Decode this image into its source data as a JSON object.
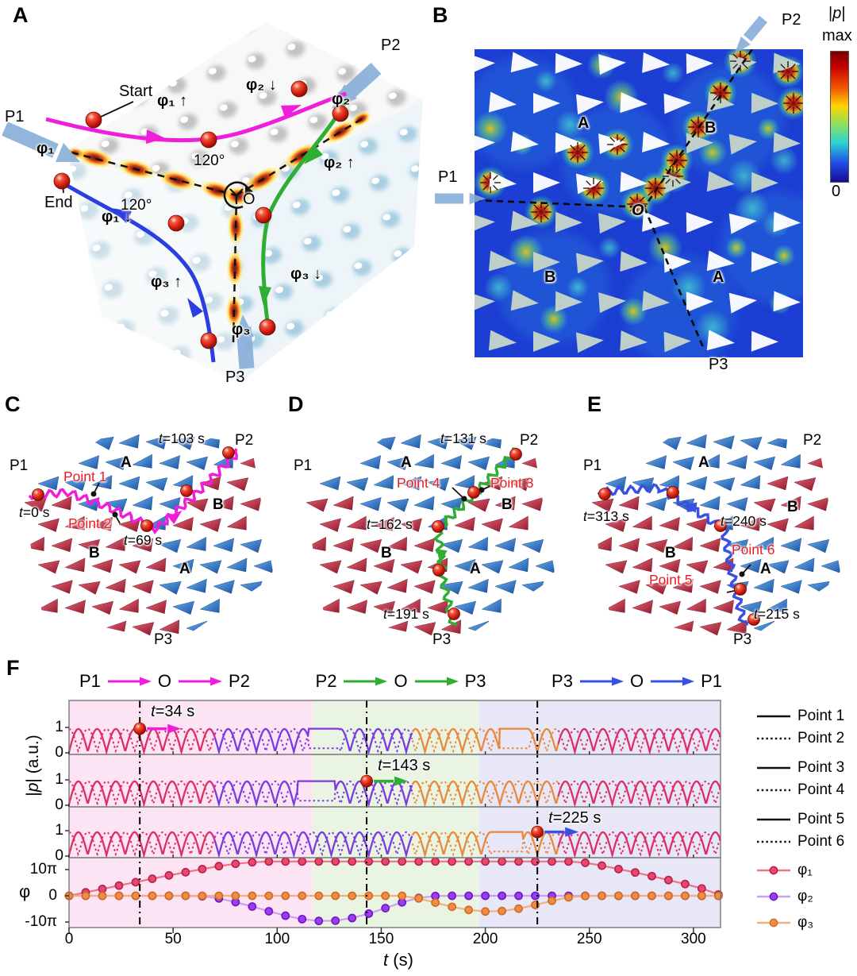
{
  "colors": {
    "magenta": "#f01ddb",
    "green": "#2fae33",
    "blue": "#3a50e0",
    "crimson": "#de2e66",
    "purple": "#7c3be0",
    "orange": "#e8893c",
    "band_pink": "#fce4f4",
    "band_green": "#eaf4e3",
    "band_blue": "#e7e7f8",
    "beam_blue": "#86add8",
    "field_blue": "#1c3ed2",
    "triangle_white": "#ffffff",
    "triangle_gray": "#c5d4c9",
    "domainA_blue": "#2d7fd3",
    "domainB_red": "#c94055",
    "sphere_red": "#d21f10"
  },
  "panelA": {
    "letter": "A",
    "p1": "P1",
    "p2": "P2",
    "p3": "P3",
    "start": "Start",
    "end": "End",
    "origin": "O",
    "angle_top": "120°",
    "angle_left": "120°",
    "phi1_up": "φ₁ ↑",
    "phi2_down": "φ₂ ↓",
    "phi2_beam": "φ₂",
    "phi1_beam": "φ₁",
    "phi2_up": "φ₂ ↑",
    "phi1_down": "φ₁ ↓",
    "phi3_up": "φ₃ ↑",
    "phi3_down": "φ₃ ↓",
    "phi3_beam": "φ₃"
  },
  "panelB": {
    "letter": "B",
    "p1": "P1",
    "p2": "P2",
    "p3": "P3",
    "origin": "O",
    "region_top_a": "A",
    "region_top_b": "B",
    "region_bottom_b": "B",
    "region_bottom_a": "A",
    "colorbar": {
      "bar1": "|",
      "p": "p",
      "bar2": "|",
      "max": "max",
      "min": "0"
    }
  },
  "panelC": {
    "letter": "C",
    "p1": "P1",
    "p2": "P2",
    "p3": "P3",
    "t_start": "t=0 s",
    "t_mid": "t=69 s",
    "t_end": "t=103 s",
    "point_a": "Point 1",
    "point_b": "Point 2",
    "region_top": "A",
    "region_right": "B",
    "region_bottom_left": "B",
    "region_bottom_right": "A"
  },
  "panelD": {
    "letter": "D",
    "p1": "P1",
    "p2": "P2",
    "p3": "P3",
    "t_start": "t=131 s",
    "t_mid": "t=162 s",
    "t_end": "t=191 s",
    "point_a": "Point 4",
    "point_b": "Point 3",
    "region_top": "A",
    "region_right": "B",
    "region_bottom_left": "B",
    "region_bottom_right": "A"
  },
  "panelE": {
    "letter": "E",
    "p1": "P1",
    "p2": "P2",
    "p3": "P3",
    "t_start": "t=313 s",
    "t_mid": "t=240 s",
    "t_end": "t=215 s",
    "point_a": "Point 6",
    "point_b": "Point 5",
    "region_top": "A",
    "region_right": "B",
    "region_bottom_left": "B",
    "region_bottom_right": "A"
  },
  "panelF": {
    "letter": "F",
    "journeys": [
      {
        "from": "P1",
        "via": "O",
        "to": "P2",
        "color": "#f01ddb"
      },
      {
        "from": "P2",
        "via": "O",
        "to": "P3",
        "color": "#2fae33"
      },
      {
        "from": "P3",
        "via": "O",
        "to": "P1",
        "color": "#3a50e0"
      }
    ],
    "ylabel_p_parts": {
      "bar1": "|",
      "p": "p",
      "rest": "| (a.u.)"
    },
    "ylabel_phi": "φ",
    "xlabel": "t (s)",
    "legend": [
      {
        "label": "Point 1",
        "line": "solid"
      },
      {
        "label": "Point 2",
        "line": "dotted"
      },
      {
        "label": "Point 3",
        "line": "solid"
      },
      {
        "label": "Point 4",
        "line": "dotted"
      },
      {
        "label": "Point 5",
        "line": "solid"
      },
      {
        "label": "Point 6",
        "line": "dotted"
      },
      {
        "label": "φ₁",
        "line": "phi",
        "marker": "#e8486c",
        "stroke": "#ef7287",
        "edge": "#b81e48"
      },
      {
        "label": "φ₂",
        "line": "phi",
        "marker": "#9a3cf0",
        "stroke": "#cf9ef2",
        "edge": "#6e18c0"
      },
      {
        "label": "φ₃",
        "line": "phi",
        "marker": "#f08c4a",
        "stroke": "#f4b07c",
        "edge": "#d06a20"
      }
    ]
  },
  "chart_data": {
    "type": "line",
    "xlabel": "t (s)",
    "xlim": [
      0,
      313
    ],
    "xticks": [
      0,
      50,
      100,
      150,
      200,
      250,
      300
    ],
    "bands": [
      {
        "t": [
          0,
          117
        ],
        "color": "#fce4f4",
        "journey": "P1→O→P2"
      },
      {
        "t": [
          117,
          197
        ],
        "color": "#eaf4e3",
        "journey": "P2→O→P3"
      },
      {
        "t": [
          197,
          313
        ],
        "color": "#e7e7f8",
        "journey": "P3→O→P1"
      }
    ],
    "event_times": [
      34,
      143,
      225
    ],
    "oscillation": {
      "period_s": 9,
      "ylim": [
        0,
        1
      ]
    },
    "color_phases": [
      {
        "until": 70,
        "color": "#de2e66"
      },
      {
        "until": 165,
        "color": "#7c3be0"
      },
      {
        "until": 235,
        "color": "#e8893c"
      },
      {
        "until": 313,
        "color": "#de2e66"
      }
    ],
    "p_rows": [
      {
        "solid": "Point 1",
        "dotted": "Point 2",
        "yticks": [
          1,
          0
        ],
        "pauses": [
          [
            115,
            130
          ],
          [
            207,
            221
          ]
        ],
        "annotation": {
          "label": "t=34 s",
          "t": 34,
          "arrow": "#f01ddb"
        }
      },
      {
        "solid": "Point 3",
        "dotted": "Point 4",
        "yticks": [
          1,
          0
        ],
        "pauses": [
          [
            110,
            128
          ]
        ],
        "annotation": {
          "label": "t=143 s",
          "t": 143,
          "arrow": "#2fae33"
        }
      },
      {
        "solid": "Point 5",
        "dotted": "Point 6",
        "yticks": [
          1,
          0
        ],
        "pauses": [
          [
            203,
            218
          ]
        ],
        "annotation": {
          "label": "t=225 s",
          "t": 225,
          "arrow": "#3a50e0"
        }
      }
    ],
    "phi_axis": {
      "ylabel": "φ",
      "yticks": [
        "10π",
        "0",
        "-10π"
      ],
      "ytick_values": [
        10,
        0,
        -10
      ]
    },
    "phi_series": [
      {
        "name": "φ₁",
        "marker": "#e8486c",
        "stroke": "#ef7287",
        "edge": "#b81e48",
        "points_pi": [
          [
            0,
            0
          ],
          [
            8,
            1.3
          ],
          [
            16,
            2.6
          ],
          [
            24,
            3.9
          ],
          [
            32,
            5.2
          ],
          [
            40,
            6.5
          ],
          [
            48,
            7.8
          ],
          [
            56,
            9.0
          ],
          [
            64,
            10.2
          ],
          [
            72,
            11.3
          ],
          [
            80,
            12.2
          ],
          [
            88,
            12.8
          ],
          [
            96,
            13.1
          ],
          [
            104,
            13.1
          ],
          [
            112,
            13.1
          ],
          [
            120,
            13.1
          ],
          [
            128,
            13.1
          ],
          [
            136,
            13.1
          ],
          [
            144,
            13.1
          ],
          [
            152,
            13.1
          ],
          [
            160,
            13.1
          ],
          [
            168,
            13.1
          ],
          [
            176,
            13.1
          ],
          [
            184,
            13.1
          ],
          [
            192,
            13.1
          ],
          [
            200,
            13.1
          ],
          [
            208,
            13.1
          ],
          [
            216,
            13.1
          ],
          [
            224,
            13.1
          ],
          [
            232,
            13.1
          ],
          [
            240,
            13.1
          ],
          [
            248,
            12.6
          ],
          [
            256,
            11.5
          ],
          [
            264,
            10.2
          ],
          [
            272,
            8.9
          ],
          [
            280,
            7.5
          ],
          [
            288,
            6.0
          ],
          [
            296,
            4.5
          ],
          [
            304,
            2.8
          ],
          [
            312,
            0.5
          ]
        ]
      },
      {
        "name": "φ₂",
        "marker": "#9a3cf0",
        "stroke": "#cf9ef2",
        "edge": "#6e18c0",
        "points_pi": [
          [
            0,
            0
          ],
          [
            8,
            0
          ],
          [
            16,
            0
          ],
          [
            24,
            0
          ],
          [
            32,
            0
          ],
          [
            40,
            0
          ],
          [
            48,
            0
          ],
          [
            56,
            0
          ],
          [
            64,
            -0.2
          ],
          [
            72,
            -1.0
          ],
          [
            80,
            -2.4
          ],
          [
            88,
            -4.1
          ],
          [
            96,
            -5.9
          ],
          [
            104,
            -7.6
          ],
          [
            112,
            -8.9
          ],
          [
            120,
            -9.6
          ],
          [
            128,
            -9.5
          ],
          [
            136,
            -8.5
          ],
          [
            144,
            -6.8
          ],
          [
            152,
            -4.7
          ],
          [
            160,
            -2.5
          ],
          [
            168,
            -0.8
          ],
          [
            176,
            -0.1
          ],
          [
            184,
            0
          ],
          [
            192,
            0
          ],
          [
            200,
            0
          ],
          [
            208,
            0
          ],
          [
            216,
            0
          ],
          [
            224,
            0
          ],
          [
            232,
            0
          ],
          [
            240,
            0
          ],
          [
            248,
            0
          ],
          [
            256,
            0
          ],
          [
            264,
            0
          ],
          [
            272,
            0
          ],
          [
            280,
            0
          ],
          [
            288,
            0
          ],
          [
            296,
            0
          ],
          [
            304,
            0
          ],
          [
            312,
            0
          ]
        ]
      },
      {
        "name": "φ₃",
        "marker": "#f08c4a",
        "stroke": "#f4b07c",
        "edge": "#d06a20",
        "points_pi": [
          [
            0,
            0
          ],
          [
            8,
            0
          ],
          [
            16,
            0
          ],
          [
            24,
            0
          ],
          [
            32,
            0
          ],
          [
            40,
            0
          ],
          [
            48,
            0
          ],
          [
            56,
            0
          ],
          [
            64,
            0
          ],
          [
            72,
            0
          ],
          [
            80,
            0
          ],
          [
            88,
            0
          ],
          [
            96,
            0
          ],
          [
            104,
            0
          ],
          [
            112,
            0
          ],
          [
            120,
            0
          ],
          [
            128,
            0
          ],
          [
            136,
            0
          ],
          [
            144,
            0
          ],
          [
            152,
            0
          ],
          [
            160,
            0
          ],
          [
            168,
            -1.0
          ],
          [
            176,
            -2.6
          ],
          [
            184,
            -4.2
          ],
          [
            192,
            -5.4
          ],
          [
            200,
            -6.0
          ],
          [
            208,
            -5.8
          ],
          [
            216,
            -4.9
          ],
          [
            224,
            -3.5
          ],
          [
            232,
            -1.9
          ],
          [
            240,
            -0.6
          ],
          [
            248,
            -0.1
          ],
          [
            256,
            0
          ],
          [
            264,
            0
          ],
          [
            272,
            0
          ],
          [
            280,
            0
          ],
          [
            288,
            0
          ],
          [
            296,
            0
          ],
          [
            304,
            0
          ],
          [
            312,
            0
          ]
        ]
      }
    ]
  }
}
